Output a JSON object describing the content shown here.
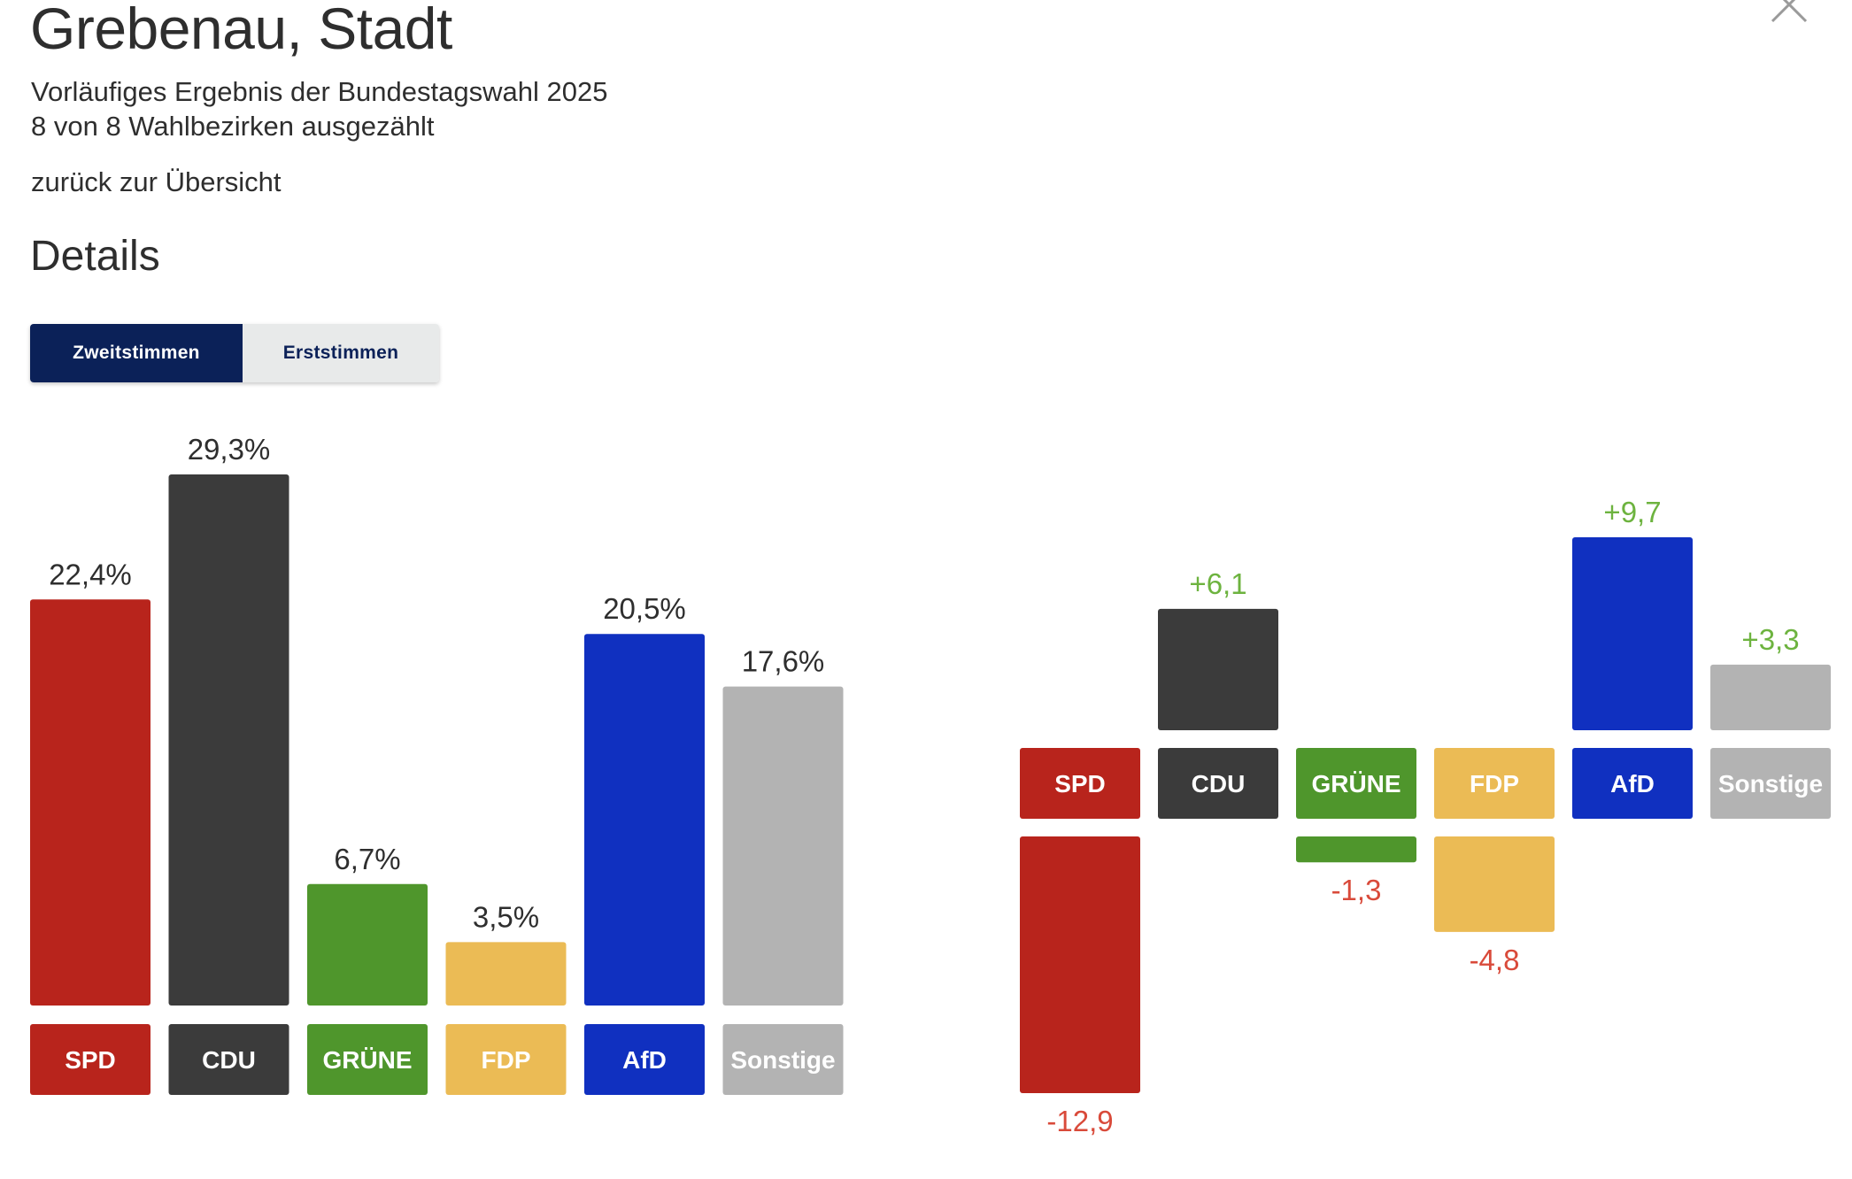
{
  "header": {
    "title": "Grebenau, Stadt",
    "subtitle_line1": "Vorläufiges Ergebnis der Bundestagswahl 2025",
    "subtitle_line2": "8 von 8 Wahlbezirken ausgezählt",
    "back_link": "zurück zur Übersicht",
    "close_icon": "close-icon"
  },
  "details": {
    "section_title": "Details",
    "tabs": [
      {
        "label": "Zweitstimmen",
        "active": true
      },
      {
        "label": "Erststimmen",
        "active": false
      }
    ]
  },
  "colors": {
    "SPD": "#b8241c",
    "CDU": "#3b3b3b",
    "GRÜNE": "#4f962c",
    "FDP": "#ebbb55",
    "AfD": "#1030c0",
    "Sonstige": "#b3b3b3",
    "positive": "#6db33f",
    "negative": "#d94a3a"
  },
  "chart_data": [
    {
      "type": "bar",
      "categories": [
        "SPD",
        "CDU",
        "GRÜNE",
        "FDP",
        "AfD",
        "Sonstige"
      ],
      "values": [
        22.4,
        29.3,
        6.7,
        3.5,
        20.5,
        17.6
      ],
      "value_labels": [
        "22,4%",
        "29,3%",
        "6,7%",
        "3,5%",
        "20,5%",
        "17,6%"
      ],
      "unit": "%",
      "title": "",
      "xlabel": "",
      "ylabel": "",
      "grid": false,
      "legend": "none"
    },
    {
      "type": "bar",
      "categories": [
        "SPD",
        "CDU",
        "GRÜNE",
        "FDP",
        "AfD",
        "Sonstige"
      ],
      "values": [
        -12.9,
        6.1,
        -1.3,
        -4.8,
        9.7,
        3.3
      ],
      "value_labels": [
        "-12,9",
        "+6,1",
        "-1,3",
        "-4,8",
        "+9,7",
        "+3,3"
      ],
      "title": "",
      "xlabel": "",
      "ylabel": "",
      "grid": false,
      "legend": "none"
    }
  ]
}
